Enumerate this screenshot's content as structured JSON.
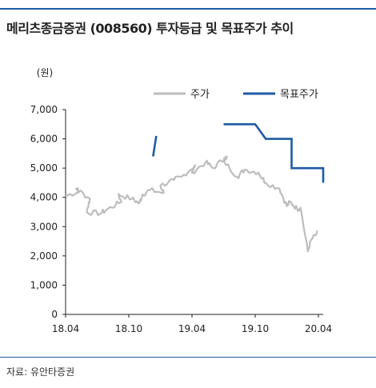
{
  "title": "메리츠종금증권 (008560) 투자등급 및 목표주가 추이",
  "source": "자료: 유안타증권",
  "chart_data": {
    "type": "line",
    "unit_label": "(원)",
    "ylim": [
      0,
      7000
    ],
    "yticks": [
      "0",
      "1,000",
      "2,000",
      "3,000",
      "4,000",
      "5,000",
      "6,000",
      "7,000"
    ],
    "xticks": [
      "18.04",
      "18.10",
      "19.04",
      "19.10",
      "20.04"
    ],
    "legend_position": "top-right",
    "series": [
      {
        "name": "주가",
        "color": "#bdbdbd",
        "points": [
          [
            "18.04",
            4050
          ],
          [
            "18.05",
            4200
          ],
          [
            "18.05",
            4300
          ],
          [
            "18.06",
            3950
          ],
          [
            "18.06",
            3500
          ],
          [
            "18.07",
            3450
          ],
          [
            "18.08",
            3600
          ],
          [
            "18.09",
            3850
          ],
          [
            "18.09",
            4100
          ],
          [
            "18.10",
            3950
          ],
          [
            "18.11",
            3800
          ],
          [
            "18.11",
            4100
          ],
          [
            "18.12",
            4250
          ],
          [
            "19.01",
            4150
          ],
          [
            "19.01",
            4400
          ],
          [
            "19.02",
            4600
          ],
          [
            "19.03",
            4700
          ],
          [
            "19.04",
            5100
          ],
          [
            "19.04",
            4850
          ],
          [
            "19.05",
            5200
          ],
          [
            "19.06",
            5000
          ],
          [
            "19.07",
            5400
          ],
          [
            "19.07",
            5250
          ],
          [
            "19.08",
            4700
          ],
          [
            "19.09",
            4950
          ],
          [
            "19.10",
            4850
          ],
          [
            "19.11",
            4500
          ],
          [
            "19.12",
            4300
          ],
          [
            "20.01",
            3700
          ],
          [
            "20.01",
            3850
          ],
          [
            "20.02",
            3600
          ],
          [
            "20.02",
            3650
          ],
          [
            "20.03",
            2150
          ],
          [
            "20.03",
            2550
          ],
          [
            "20.04",
            2800
          ]
        ]
      },
      {
        "name": "목표주가",
        "color": "#1f5aa6",
        "segments": [
          [
            [
              "18.12",
              5400
            ],
            [
              "18.12",
              6100
            ]
          ],
          [
            [
              "19.07",
              6500
            ],
            [
              "19.10",
              6500
            ],
            [
              "19.11",
              6000
            ],
            [
              "20.01",
              6000
            ],
            [
              "20.01",
              5000
            ],
            [
              "20.04",
              5000
            ],
            [
              "20.04",
              4500
            ]
          ]
        ]
      }
    ]
  }
}
